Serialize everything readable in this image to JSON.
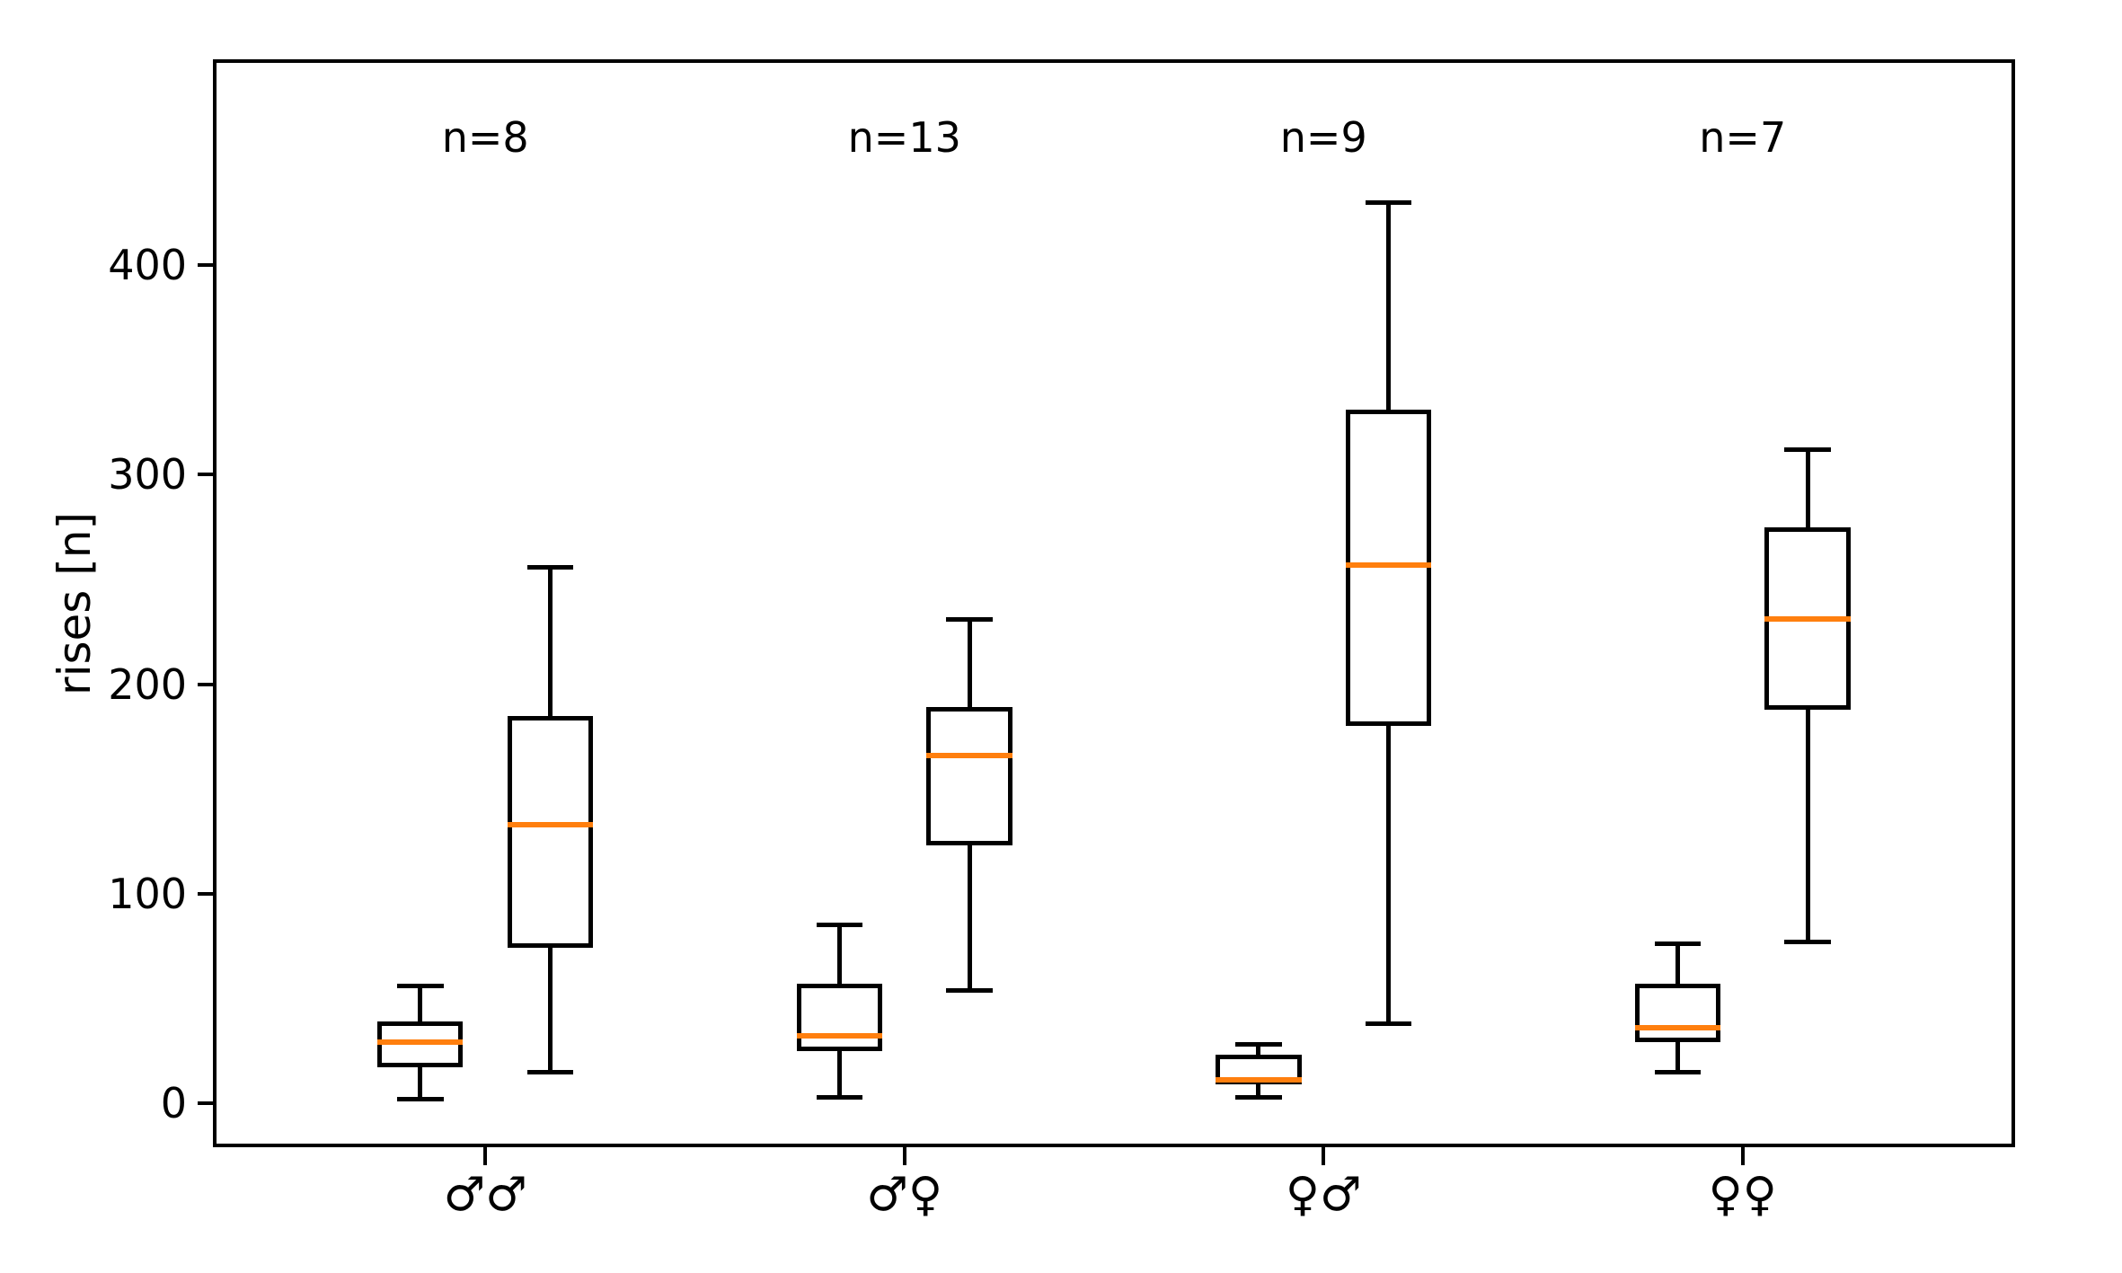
{
  "figure": {
    "background_color": "#ffffff",
    "line_color": "#000000"
  },
  "chart_data": {
    "type": "boxplot",
    "title": "",
    "xlabel": "",
    "ylabel": "rises [n]",
    "ylim": [
      -21,
      498.3
    ],
    "xlim": [
      0.35,
      4.65
    ],
    "yticks": [
      0,
      100,
      200,
      300,
      400
    ],
    "ytick_labels": [
      "0",
      "100",
      "200",
      "300",
      "400"
    ],
    "grid": false,
    "legend": false,
    "median_color": "#ff7f0e",
    "box_color": "#000000",
    "annotation_y": 461,
    "box_offsets": [
      -0.155,
      0.155
    ],
    "box_width": 0.204,
    "cap_width": 0.11,
    "categories": [
      "♂♂",
      "♂♀",
      "♀♂",
      "♀♀"
    ],
    "groups": [
      {
        "category": "♂♂",
        "annotation": "n=8",
        "x": 1,
        "boxes": [
          {
            "whisker_low": 2,
            "q1": 17,
            "median": 29,
            "q3": 39,
            "whisker_high": 56
          },
          {
            "whisker_low": 15,
            "q1": 74,
            "median": 133,
            "q3": 185,
            "whisker_high": 256
          }
        ]
      },
      {
        "category": "♂♀",
        "annotation": "n=13",
        "x": 2,
        "boxes": [
          {
            "whisker_low": 3,
            "q1": 25,
            "median": 32,
            "q3": 57,
            "whisker_high": 85
          },
          {
            "whisker_low": 54,
            "q1": 123,
            "median": 166,
            "q3": 189,
            "whisker_high": 231
          }
        ]
      },
      {
        "category": "♀♂",
        "annotation": "n=9",
        "x": 3,
        "boxes": [
          {
            "whisker_low": 3,
            "q1": 9,
            "median": 11,
            "q3": 23,
            "whisker_high": 28
          },
          {
            "whisker_low": 38,
            "q1": 180,
            "median": 257,
            "q3": 331,
            "whisker_high": 430
          }
        ]
      },
      {
        "category": "♀♀",
        "annotation": "n=7",
        "x": 4,
        "boxes": [
          {
            "whisker_low": 15,
            "q1": 29,
            "median": 36,
            "q3": 57,
            "whisker_high": 76
          },
          {
            "whisker_low": 77,
            "q1": 188,
            "median": 231,
            "q3": 275,
            "whisker_high": 312
          }
        ]
      }
    ]
  }
}
